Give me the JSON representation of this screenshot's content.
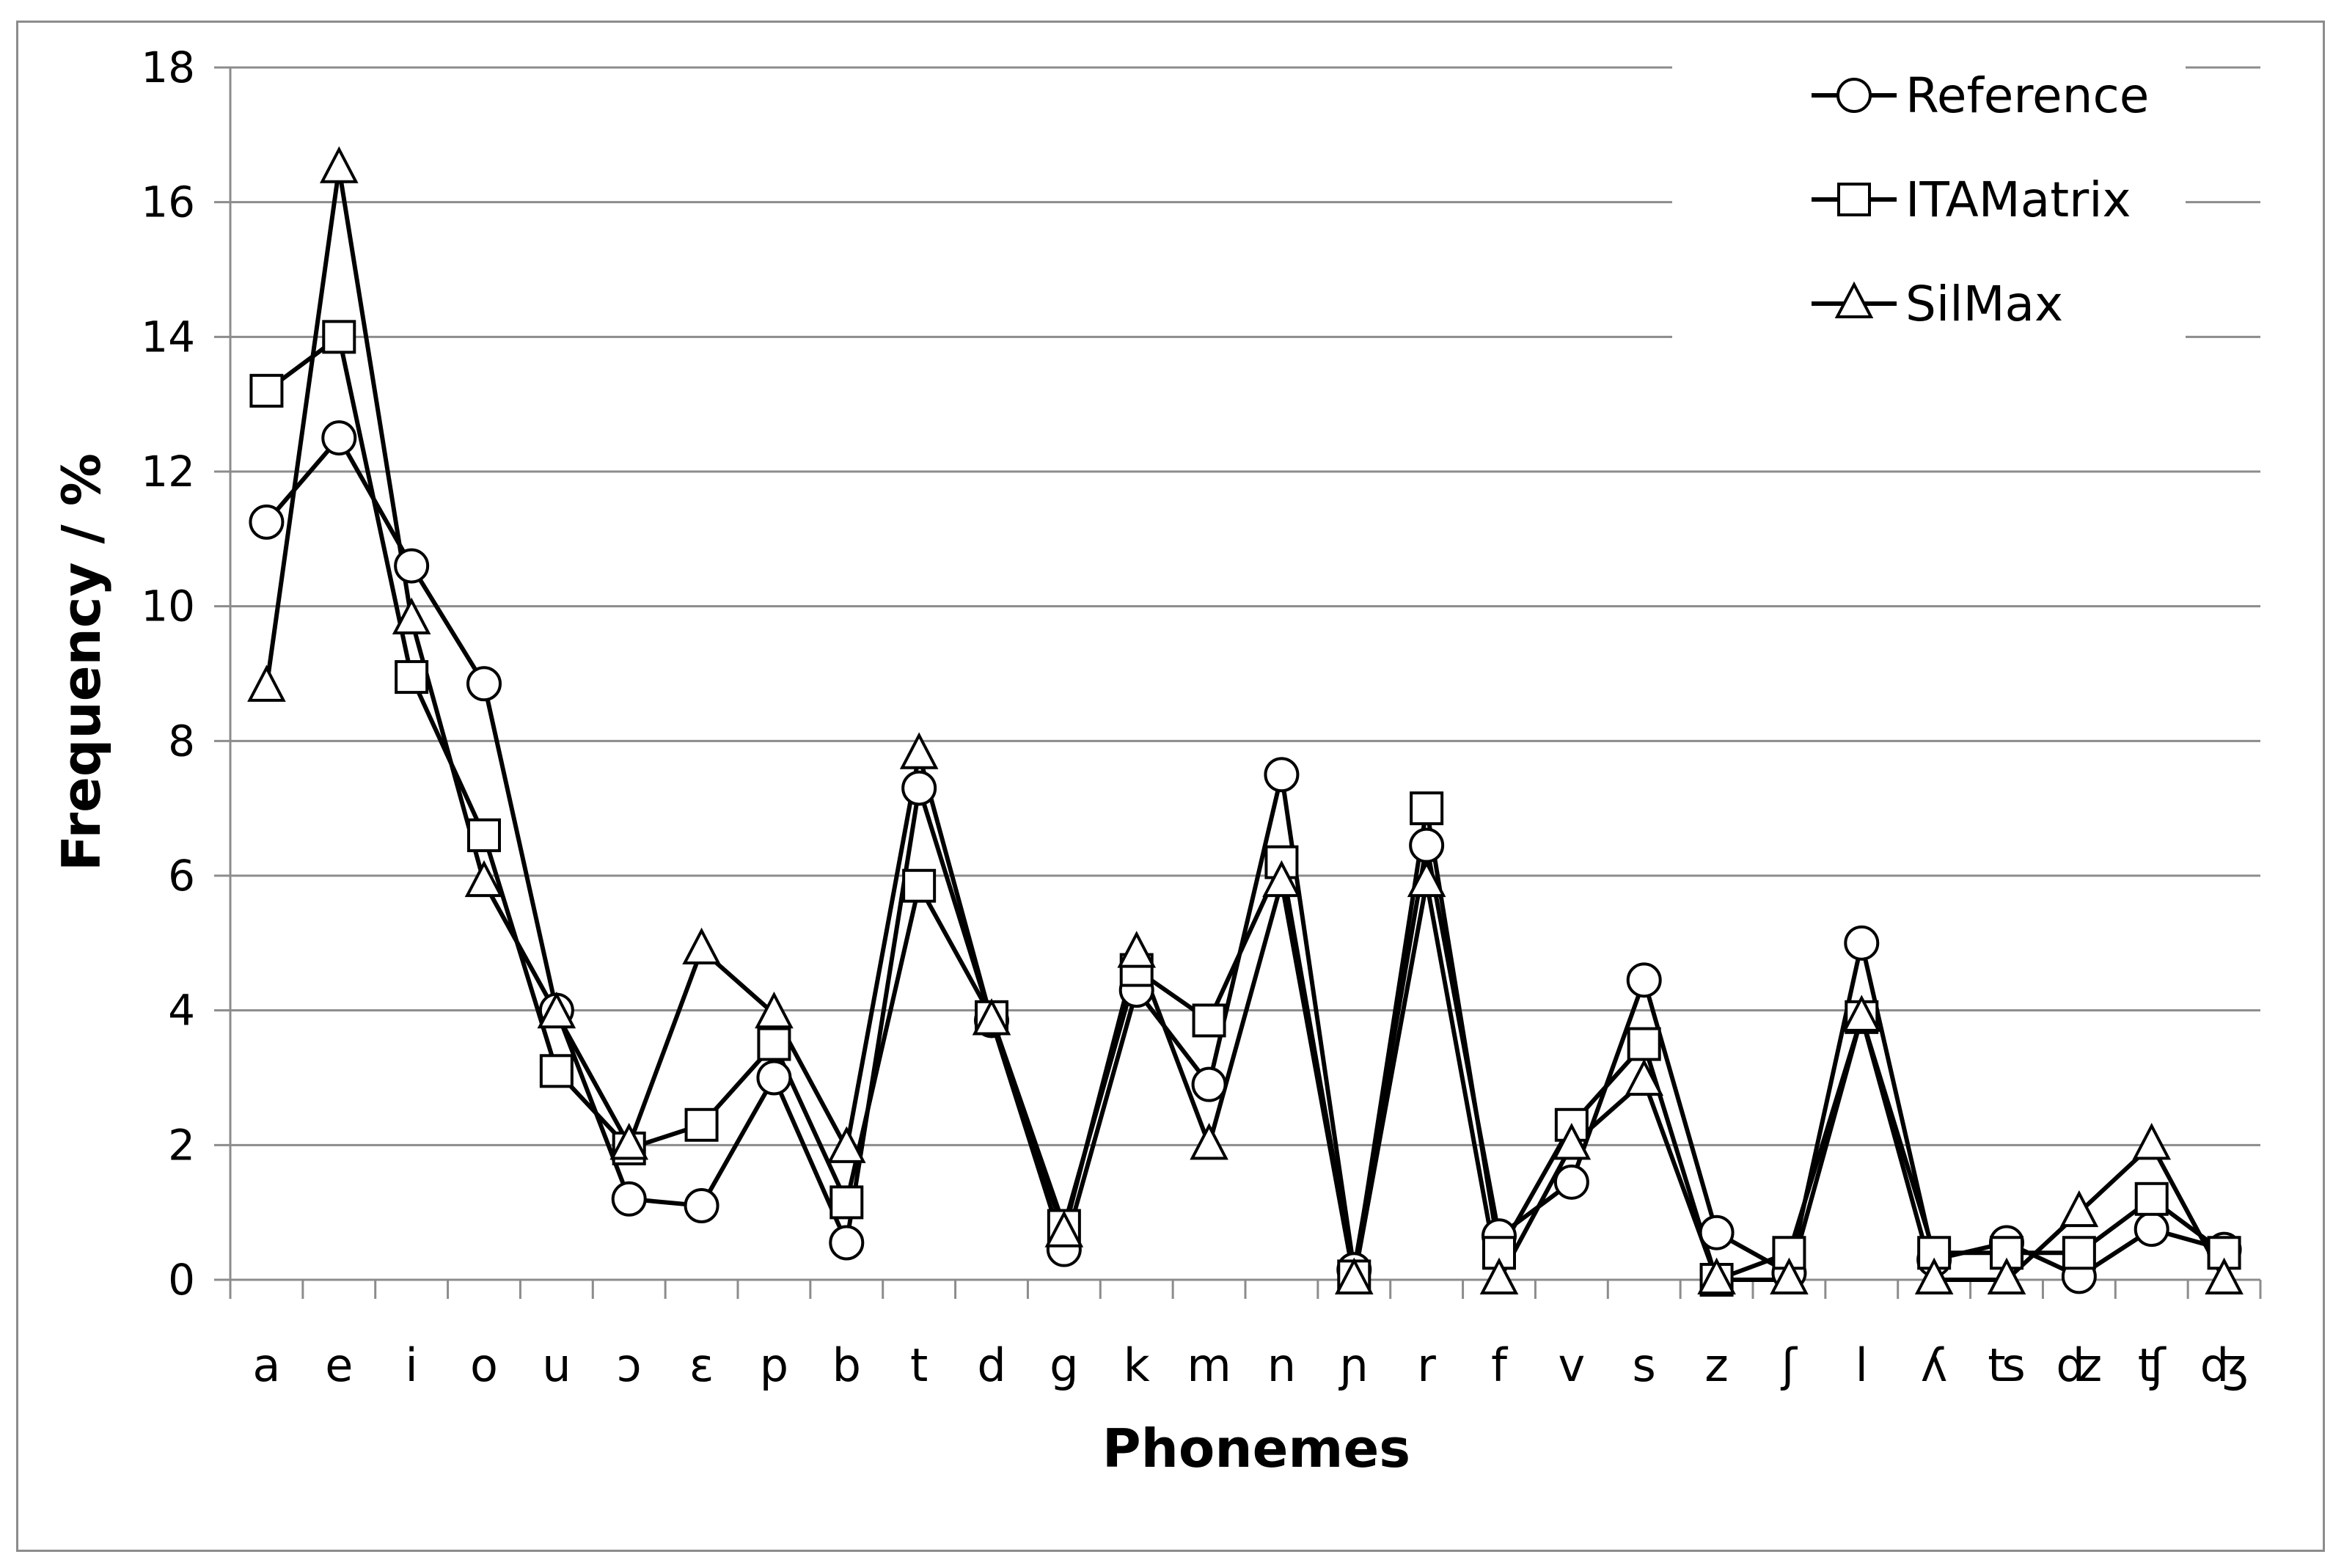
{
  "chart_data": {
    "type": "line",
    "title": "",
    "xlabel": "Phonemes",
    "ylabel": "Frequency / %",
    "ylim": [
      0,
      18
    ],
    "yticks": [
      0,
      2,
      4,
      6,
      8,
      10,
      12,
      14,
      16,
      18
    ],
    "grid": "horizontal",
    "legend_position": "top-right",
    "categories": [
      "a",
      "e",
      "i",
      "o",
      "u",
      "ɔ",
      "ɛ",
      "p",
      "b",
      "t",
      "d",
      "g",
      "k",
      "m",
      "n",
      "ɲ",
      "r",
      "f",
      "v",
      "s",
      "z",
      "ʃ",
      "l",
      "ʎ",
      "ʦ",
      "ʣ",
      "ʧ",
      "ʤ"
    ],
    "series": [
      {
        "name": "Reference",
        "marker": "circle",
        "values": [
          11.25,
          12.5,
          10.6,
          8.85,
          4.0,
          1.2,
          1.1,
          3.0,
          0.55,
          7.3,
          3.85,
          0.45,
          4.3,
          2.9,
          7.5,
          0.15,
          6.45,
          0.65,
          1.45,
          4.45,
          0.7,
          0.1,
          5.0,
          0.3,
          0.55,
          0.05,
          0.75,
          0.45
        ]
      },
      {
        "name": "ITAMatrix",
        "marker": "square",
        "values": [
          13.2,
          14.0,
          8.95,
          6.6,
          3.1,
          1.95,
          2.3,
          3.5,
          1.15,
          5.85,
          3.9,
          0.8,
          4.6,
          3.85,
          6.2,
          0.05,
          7.0,
          0.4,
          2.3,
          3.5,
          0.0,
          0.4,
          3.9,
          0.4,
          0.4,
          0.4,
          1.2,
          0.4
        ]
      },
      {
        "name": "SilMax",
        "marker": "triangle",
        "values": [
          8.8,
          16.5,
          9.8,
          5.9,
          3.95,
          2.0,
          4.9,
          3.95,
          1.95,
          7.8,
          3.85,
          0.7,
          4.85,
          2.0,
          5.9,
          0.0,
          5.9,
          0.0,
          2.0,
          2.95,
          0.0,
          0.0,
          3.9,
          0.0,
          0.0,
          1.0,
          2.0,
          0.0
        ]
      }
    ]
  }
}
